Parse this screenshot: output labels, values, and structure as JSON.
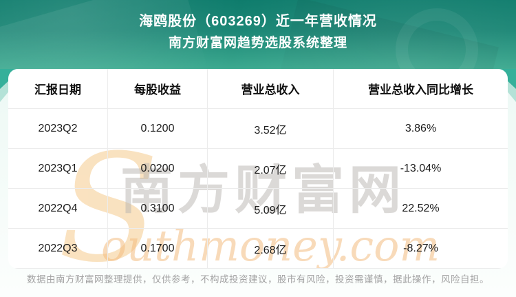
{
  "header": {
    "title": "海鸥股份（603269）近一年营收情况",
    "subtitle": "南方财富网趋势选股系统整理"
  },
  "table": {
    "columns": [
      "汇报日期",
      "每股收益",
      "营业总收入",
      "营业总收入同比增长"
    ],
    "rows": [
      [
        "2023Q2",
        "0.1200",
        "3.52亿",
        "3.86%"
      ],
      [
        "2023Q1",
        "0.0200",
        "2.07亿",
        "-13.04%"
      ],
      [
        "2022Q4",
        "0.3100",
        "5.09亿",
        "22.52%"
      ],
      [
        "2022Q3",
        "0.1700",
        "2.68亿",
        "-8.27%"
      ]
    ]
  },
  "watermark": {
    "cn": "南方财富网",
    "en_initial": "S",
    "en_rest": "outhmoney.com"
  },
  "footer": {
    "disclaimer": "数据由南方财富网整理提供，仅供参考，不构成投资建议，股市有风险，投资需谨慎，据此操作，风险自担。"
  },
  "colors": {
    "header_teal_top": "#0e7c6c",
    "header_teal_bottom": "#3ba98f",
    "ribbon_teal": "#35b09a",
    "ribbon_mint": "#b4e2d7",
    "card_bg": "#ffffff",
    "table_border": "#ececec",
    "table_text": "#1c1c1c",
    "footer_text": "#a3a3a3",
    "watermark_gray": "#b9b5b1",
    "watermark_orange": "#f4bd80"
  },
  "chart_data": {
    "type": "table",
    "title": "海鸥股份（603269）近一年营收情况",
    "subtitle": "南方财富网趋势选股系统整理",
    "columns": [
      "汇报日期",
      "每股收益",
      "营业总收入",
      "营业总收入同比增长"
    ],
    "rows": [
      {
        "period": "2023Q2",
        "eps": 0.12,
        "revenue": "3.52亿",
        "yoy_growth_pct": 3.86
      },
      {
        "period": "2023Q1",
        "eps": 0.02,
        "revenue": "2.07亿",
        "yoy_growth_pct": -13.04
      },
      {
        "period": "2022Q4",
        "eps": 0.31,
        "revenue": "5.09亿",
        "yoy_growth_pct": 22.52
      },
      {
        "period": "2022Q3",
        "eps": 0.17,
        "revenue": "2.68亿",
        "yoy_growth_pct": -8.27
      }
    ]
  }
}
